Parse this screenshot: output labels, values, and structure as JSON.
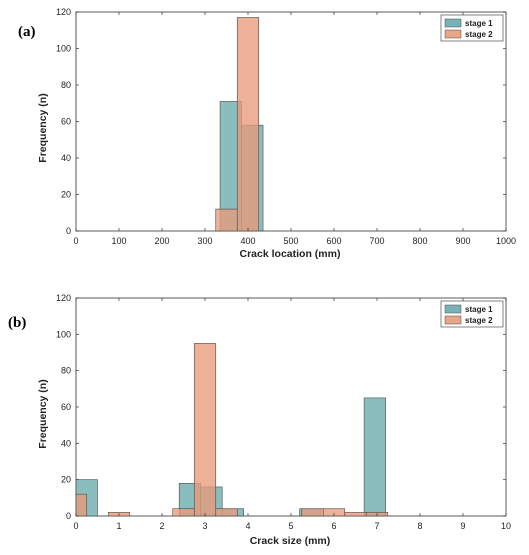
{
  "colors": {
    "stage1": "#68aaac",
    "stage2": "#e99a78",
    "overlap": "#a78c79",
    "bar_stroke": "#4a4a4a",
    "axis": "#333333"
  },
  "chart_data": [
    {
      "type": "bar",
      "panel_label": "(a)",
      "xlabel": "Crack location (mm)",
      "ylabel": "Frequency (n)",
      "xlim": [
        0,
        1000
      ],
      "ylim": [
        0,
        120
      ],
      "xticks": [
        0,
        100,
        200,
        300,
        400,
        500,
        600,
        700,
        800,
        900,
        1000
      ],
      "yticks": [
        0,
        20,
        40,
        60,
        80,
        100,
        120
      ],
      "legend_position": "top-right",
      "bin_width": 50,
      "series": [
        {
          "name": "stage 1",
          "bins": [
            {
              "x0": 335,
              "x1": 385,
              "value": 71
            },
            {
              "x0": 385,
              "x1": 435,
              "value": 58
            }
          ]
        },
        {
          "name": "stage 2",
          "bins": [
            {
              "x0": 325,
              "x1": 375,
              "value": 12
            },
            {
              "x0": 375,
              "x1": 425,
              "value": 117
            }
          ]
        }
      ]
    },
    {
      "type": "bar",
      "panel_label": "(b)",
      "xlabel": "Crack size (mm)",
      "ylabel": "Frequency (n)",
      "xlim": [
        0,
        10
      ],
      "ylim": [
        0,
        120
      ],
      "xticks": [
        0,
        1,
        2,
        3,
        4,
        5,
        6,
        7,
        8,
        9,
        10
      ],
      "yticks": [
        0,
        20,
        40,
        60,
        80,
        100,
        120
      ],
      "legend_position": "top-right",
      "bin_width": 0.5,
      "series": [
        {
          "name": "stage 1",
          "bins": [
            {
              "x0": 0.0,
              "x1": 0.5,
              "value": 20
            },
            {
              "x0": 2.4,
              "x1": 2.9,
              "value": 18
            },
            {
              "x0": 2.9,
              "x1": 3.4,
              "value": 16
            },
            {
              "x0": 3.4,
              "x1": 3.9,
              "value": 4
            },
            {
              "x0": 5.2,
              "x1": 5.7,
              "value": 4
            },
            {
              "x0": 6.7,
              "x1": 7.2,
              "value": 65
            }
          ]
        },
        {
          "name": "stage 2",
          "bins": [
            {
              "x0": 0.0,
              "x1": 0.25,
              "value": 12
            },
            {
              "x0": 0.75,
              "x1": 1.25,
              "value": 2
            },
            {
              "x0": 2.25,
              "x1": 2.75,
              "value": 4
            },
            {
              "x0": 2.75,
              "x1": 3.25,
              "value": 95
            },
            {
              "x0": 3.25,
              "x1": 3.75,
              "value": 4
            },
            {
              "x0": 5.25,
              "x1": 5.75,
              "value": 4
            },
            {
              "x0": 5.75,
              "x1": 6.25,
              "value": 4
            },
            {
              "x0": 6.25,
              "x1": 6.75,
              "value": 2
            },
            {
              "x0": 6.75,
              "x1": 7.25,
              "value": 2
            }
          ]
        }
      ]
    }
  ]
}
